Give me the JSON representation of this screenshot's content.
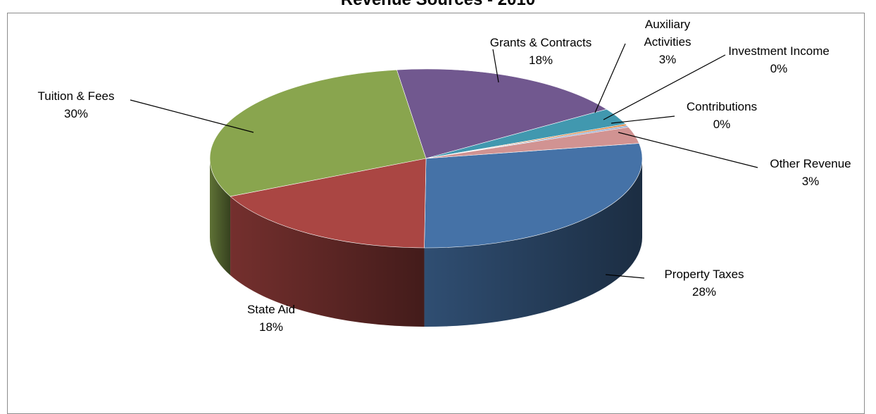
{
  "chart_data": {
    "type": "pie",
    "title": "Revenue Sources - 2010",
    "style": "3d",
    "slices": [
      {
        "name": "Property Taxes",
        "value": 28,
        "label_pct": "28%",
        "color": "#4572A7"
      },
      {
        "name": "State Aid",
        "value": 18,
        "label_pct": "18%",
        "color": "#AA4643"
      },
      {
        "name": "Tuition & Fees",
        "value": 30,
        "label_pct": "30%",
        "color": "#89A54E"
      },
      {
        "name": "Grants & Contracts",
        "value": 18,
        "label_pct": "18%",
        "color": "#71588F"
      },
      {
        "name": "Auxiliary Activities",
        "value": 3,
        "label_pct": "3%",
        "color": "#4198AF"
      },
      {
        "name": "Investment Income",
        "value": 0.3,
        "label_pct": "0%",
        "color": "#DB843D"
      },
      {
        "name": "Contributions",
        "value": 0.3,
        "label_pct": "0%",
        "color": "#93A9CF"
      },
      {
        "name": "Other Revenue",
        "value": 3,
        "label_pct": "3%",
        "color": "#D19392"
      }
    ]
  }
}
